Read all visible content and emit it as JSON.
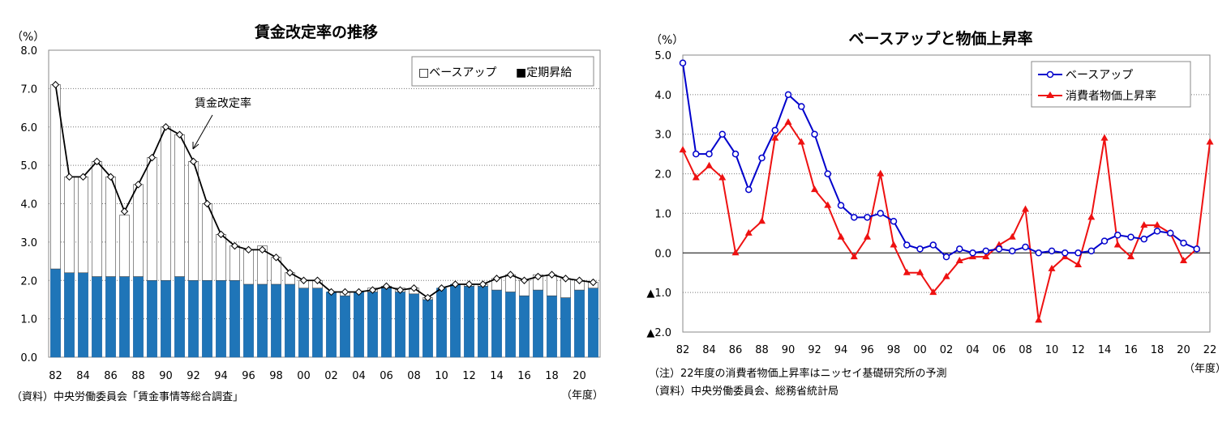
{
  "left": {
    "title": "賃金改定率の推移",
    "unit": "（%）",
    "xunit": "（年度）",
    "source": "（資料）中央労働委員会「賃金事情等総合調査」",
    "annotation": "賃金改定率",
    "legend": {
      "base_up": "□ベースアップ",
      "periodic": "■定期昇給"
    },
    "y_ticks": [
      "0.0",
      "1.0",
      "2.0",
      "3.0",
      "4.0",
      "5.0",
      "6.0",
      "7.0",
      "8.0"
    ],
    "x_ticks": [
      "82",
      "84",
      "86",
      "88",
      "90",
      "92",
      "94",
      "96",
      "98",
      "00",
      "02",
      "04",
      "06",
      "08",
      "10",
      "12",
      "14",
      "16",
      "18",
      "20"
    ],
    "colors": {
      "periodic": "#1f75b8",
      "base_up": "#ffffff",
      "line": "#000000"
    }
  },
  "right": {
    "title": "ベースアップと物価上昇率",
    "unit": "（%）",
    "xunit": "（年度）",
    "note": "（注）22年度の消費者物価上昇率はニッセイ基礎研究所の予測",
    "source": "（資料）中央労働委員会、総務省統計局",
    "legend": {
      "base_up": "ベースアップ",
      "cpi": "消費者物価上昇率"
    },
    "y_ticks": [
      "▲2.0",
      "▲1.0",
      "0.0",
      "1.0",
      "2.0",
      "3.0",
      "4.0",
      "5.0"
    ],
    "x_ticks": [
      "82",
      "84",
      "86",
      "88",
      "90",
      "92",
      "94",
      "96",
      "98",
      "00",
      "02",
      "04",
      "06",
      "08",
      "10",
      "12",
      "14",
      "16",
      "18",
      "20",
      "22"
    ],
    "colors": {
      "base_up": "#0000cc",
      "cpi": "#ee1111"
    }
  },
  "chart_data": [
    {
      "type": "bar",
      "title": "賃金改定率の推移",
      "ylabel": "（%）",
      "xlabel": "（年度）",
      "ylim": [
        0,
        8
      ],
      "grid": true,
      "legend_position": "top-right",
      "categories": [
        "82",
        "83",
        "84",
        "85",
        "86",
        "87",
        "88",
        "89",
        "90",
        "91",
        "92",
        "93",
        "94",
        "95",
        "96",
        "97",
        "98",
        "99",
        "00",
        "01",
        "02",
        "03",
        "04",
        "05",
        "06",
        "07",
        "08",
        "09",
        "10",
        "11",
        "12",
        "13",
        "14",
        "15",
        "16",
        "17",
        "18",
        "19",
        "20",
        "21"
      ],
      "series": [
        {
          "name": "定期昇給",
          "values": [
            2.3,
            2.2,
            2.2,
            2.1,
            2.1,
            2.1,
            2.1,
            2.0,
            2.0,
            2.1,
            2.0,
            2.0,
            2.0,
            2.0,
            1.9,
            1.9,
            1.9,
            1.9,
            1.8,
            1.8,
            1.7,
            1.6,
            1.7,
            1.7,
            1.8,
            1.7,
            1.65,
            1.5,
            1.8,
            1.9,
            1.85,
            1.85,
            1.75,
            1.7,
            1.6,
            1.75,
            1.6,
            1.55,
            1.75,
            1.8
          ]
        },
        {
          "name": "ベースアップ",
          "values": [
            4.8,
            2.5,
            2.5,
            3.0,
            2.6,
            1.6,
            2.4,
            3.2,
            4.0,
            3.7,
            3.1,
            2.0,
            1.2,
            0.9,
            0.9,
            1.0,
            0.7,
            0.3,
            0.2,
            0.2,
            0.0,
            0.1,
            0.0,
            0.1,
            0.05,
            0.1,
            0.15,
            0.05,
            0.0,
            0.0,
            0.05,
            0.05,
            0.3,
            0.45,
            0.4,
            0.4,
            0.55,
            0.5,
            0.25,
            0.15
          ]
        },
        {
          "name": "賃金改定率",
          "values": [
            7.1,
            4.7,
            4.7,
            5.1,
            4.7,
            3.8,
            4.5,
            5.2,
            6.0,
            5.8,
            5.1,
            4.0,
            3.2,
            2.9,
            2.8,
            2.8,
            2.6,
            2.2,
            2.0,
            2.0,
            1.7,
            1.7,
            1.7,
            1.75,
            1.85,
            1.75,
            1.8,
            1.55,
            1.8,
            1.9,
            1.9,
            1.9,
            2.05,
            2.15,
            2.0,
            2.1,
            2.15,
            2.05,
            2.0,
            1.95
          ]
        }
      ]
    },
    {
      "type": "line",
      "title": "ベースアップと物価上昇率",
      "ylabel": "（%）",
      "xlabel": "（年度）",
      "ylim": [
        -2,
        5
      ],
      "grid": true,
      "legend_position": "top-right",
      "x": [
        "82",
        "83",
        "84",
        "85",
        "86",
        "87",
        "88",
        "89",
        "90",
        "91",
        "92",
        "93",
        "94",
        "95",
        "96",
        "97",
        "98",
        "99",
        "00",
        "01",
        "02",
        "03",
        "04",
        "05",
        "06",
        "07",
        "08",
        "09",
        "10",
        "11",
        "12",
        "13",
        "14",
        "15",
        "16",
        "17",
        "18",
        "19",
        "20",
        "21",
        "22"
      ],
      "series": [
        {
          "name": "ベースアップ",
          "values": [
            4.8,
            2.5,
            2.5,
            3.0,
            2.5,
            1.6,
            2.4,
            3.1,
            4.0,
            3.7,
            3.0,
            2.0,
            1.2,
            0.9,
            0.9,
            1.0,
            0.8,
            0.2,
            0.1,
            0.2,
            -0.1,
            0.1,
            0.0,
            0.05,
            0.1,
            0.05,
            0.15,
            0.0,
            0.05,
            0.0,
            0.0,
            0.05,
            0.3,
            0.45,
            0.4,
            0.35,
            0.55,
            0.5,
            0.25,
            0.1,
            null
          ]
        },
        {
          "name": "消費者物価上昇率",
          "values": [
            2.6,
            1.9,
            2.2,
            1.9,
            0.0,
            0.5,
            0.8,
            2.9,
            3.3,
            2.8,
            1.6,
            1.2,
            0.4,
            -0.1,
            0.4,
            2.0,
            0.2,
            -0.5,
            -0.5,
            -1.0,
            -0.6,
            -0.2,
            -0.1,
            -0.1,
            0.2,
            0.4,
            1.1,
            -1.7,
            -0.4,
            -0.1,
            -0.3,
            0.9,
            2.9,
            0.2,
            -0.1,
            0.7,
            0.7,
            0.5,
            -0.2,
            0.1,
            2.8
          ]
        }
      ]
    }
  ]
}
